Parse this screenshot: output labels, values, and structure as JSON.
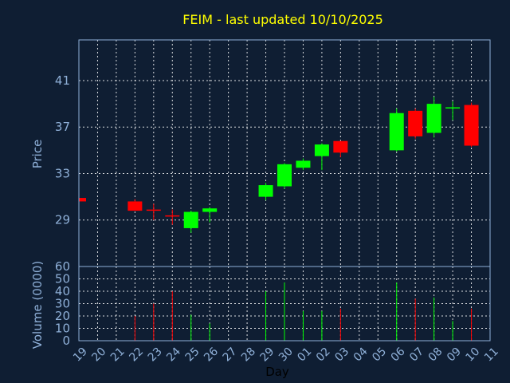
{
  "chart_data": {
    "type": "candlestick",
    "title": "FEIM - last updated 10/10/2025",
    "ylabel": "Price",
    "volume_label": "Volume (0000)",
    "xlabel": "Day",
    "price_ylim": [
      25.0,
      44.5
    ],
    "price_ticks": [
      29,
      33,
      37,
      41
    ],
    "volume_ylim": [
      0,
      60
    ],
    "volume_ticks": [
      0,
      10,
      20,
      30,
      40,
      50,
      60
    ],
    "x_ticks": [
      "19",
      "20",
      "21",
      "22",
      "23",
      "24",
      "25",
      "26",
      "27",
      "28",
      "29",
      "30",
      "01",
      "02",
      "03",
      "04",
      "05",
      "06",
      "07",
      "08",
      "09",
      "10",
      "11"
    ],
    "colors": {
      "up": "#00ff00",
      "down": "#ff0000",
      "title": "#ffff00",
      "text": "#8fb0d8",
      "background": "#0f1e33"
    },
    "candles": [
      {
        "day": "19",
        "open": 30.9,
        "high": 30.9,
        "low": 30.6,
        "close": 30.6,
        "volume": 0
      },
      {
        "day": "22",
        "open": 30.6,
        "high": 30.8,
        "low": 29.8,
        "close": 29.8,
        "volume": 20
      },
      {
        "day": "23",
        "open": 29.9,
        "high": 30.4,
        "low": 29.0,
        "close": 29.8,
        "volume": 30
      },
      {
        "day": "24",
        "open": 29.4,
        "high": 29.9,
        "low": 28.6,
        "close": 29.3,
        "volume": 40
      },
      {
        "day": "25",
        "open": 28.3,
        "high": 29.8,
        "low": 27.9,
        "close": 29.7,
        "volume": 21
      },
      {
        "day": "26",
        "open": 29.7,
        "high": 30.1,
        "low": 28.8,
        "close": 30.0,
        "volume": 14
      },
      {
        "day": "29",
        "open": 31.0,
        "high": 32.2,
        "low": 30.7,
        "close": 32.0,
        "volume": 40
      },
      {
        "day": "30",
        "open": 31.9,
        "high": 33.9,
        "low": 31.7,
        "close": 33.8,
        "volume": 47
      },
      {
        "day": "01",
        "open": 33.5,
        "high": 34.3,
        "low": 33.3,
        "close": 34.1,
        "volume": 24
      },
      {
        "day": "02",
        "open": 34.5,
        "high": 35.6,
        "low": 33.3,
        "close": 35.5,
        "volume": 24
      },
      {
        "day": "03",
        "open": 35.8,
        "high": 35.8,
        "low": 34.4,
        "close": 34.8,
        "volume": 26
      },
      {
        "day": "06",
        "open": 35.0,
        "high": 38.6,
        "low": 34.9,
        "close": 38.2,
        "volume": 47
      },
      {
        "day": "07",
        "open": 38.4,
        "high": 38.6,
        "low": 36.0,
        "close": 36.2,
        "volume": 34
      },
      {
        "day": "08",
        "open": 36.5,
        "high": 39.6,
        "low": 36.1,
        "close": 39.0,
        "volume": 35
      },
      {
        "day": "09",
        "open": 38.6,
        "high": 39.2,
        "low": 37.6,
        "close": 38.7,
        "volume": 16
      },
      {
        "day": "10",
        "open": 38.9,
        "high": 39.1,
        "low": 35.3,
        "close": 35.4,
        "volume": 26
      }
    ]
  }
}
